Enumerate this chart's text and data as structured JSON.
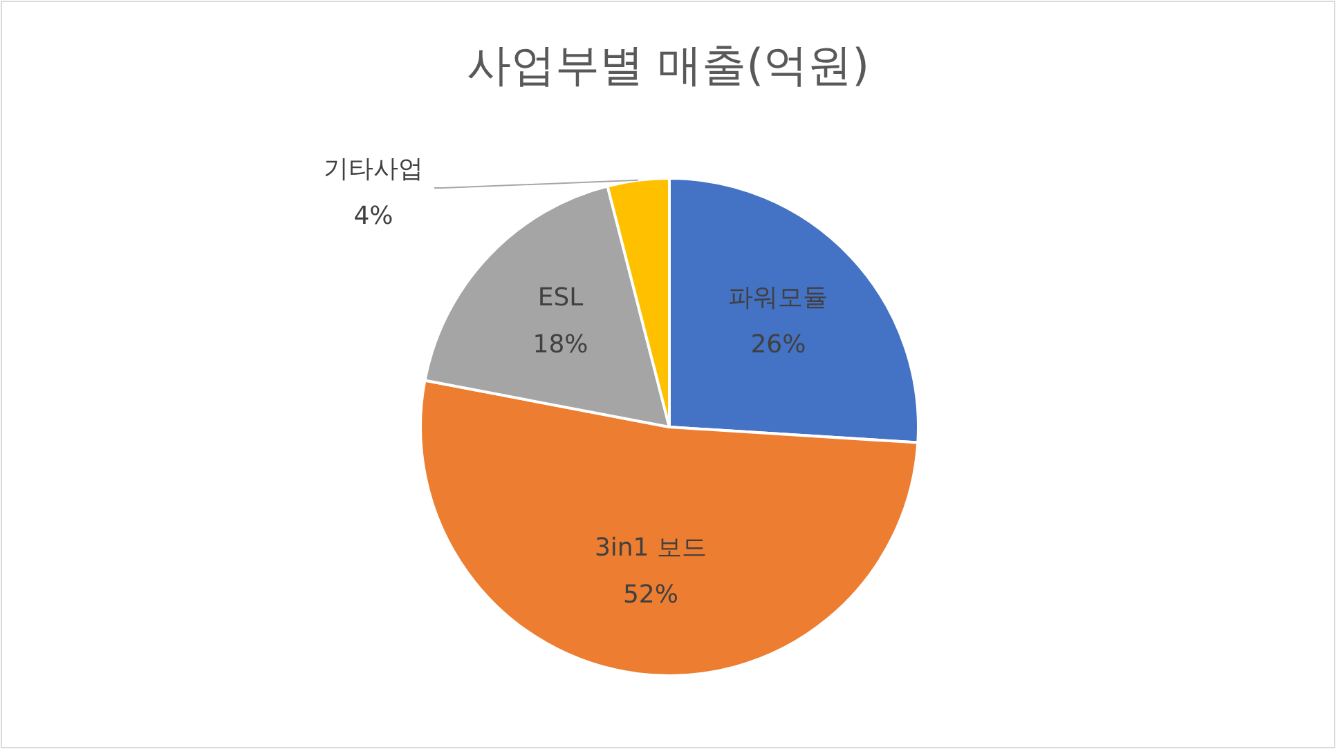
{
  "chart_data": {
    "type": "pie",
    "title": "사업부별 매출(억원)",
    "categories": [
      "파워모듈",
      "3in1 보드",
      "ESL",
      "기타사업"
    ],
    "values": [
      26,
      52,
      18,
      4
    ],
    "value_labels": [
      "26%",
      "52%",
      "18%",
      "4%"
    ],
    "colors": [
      "#4472c4",
      "#ed7d31",
      "#a5a5a5",
      "#ffc000"
    ]
  }
}
